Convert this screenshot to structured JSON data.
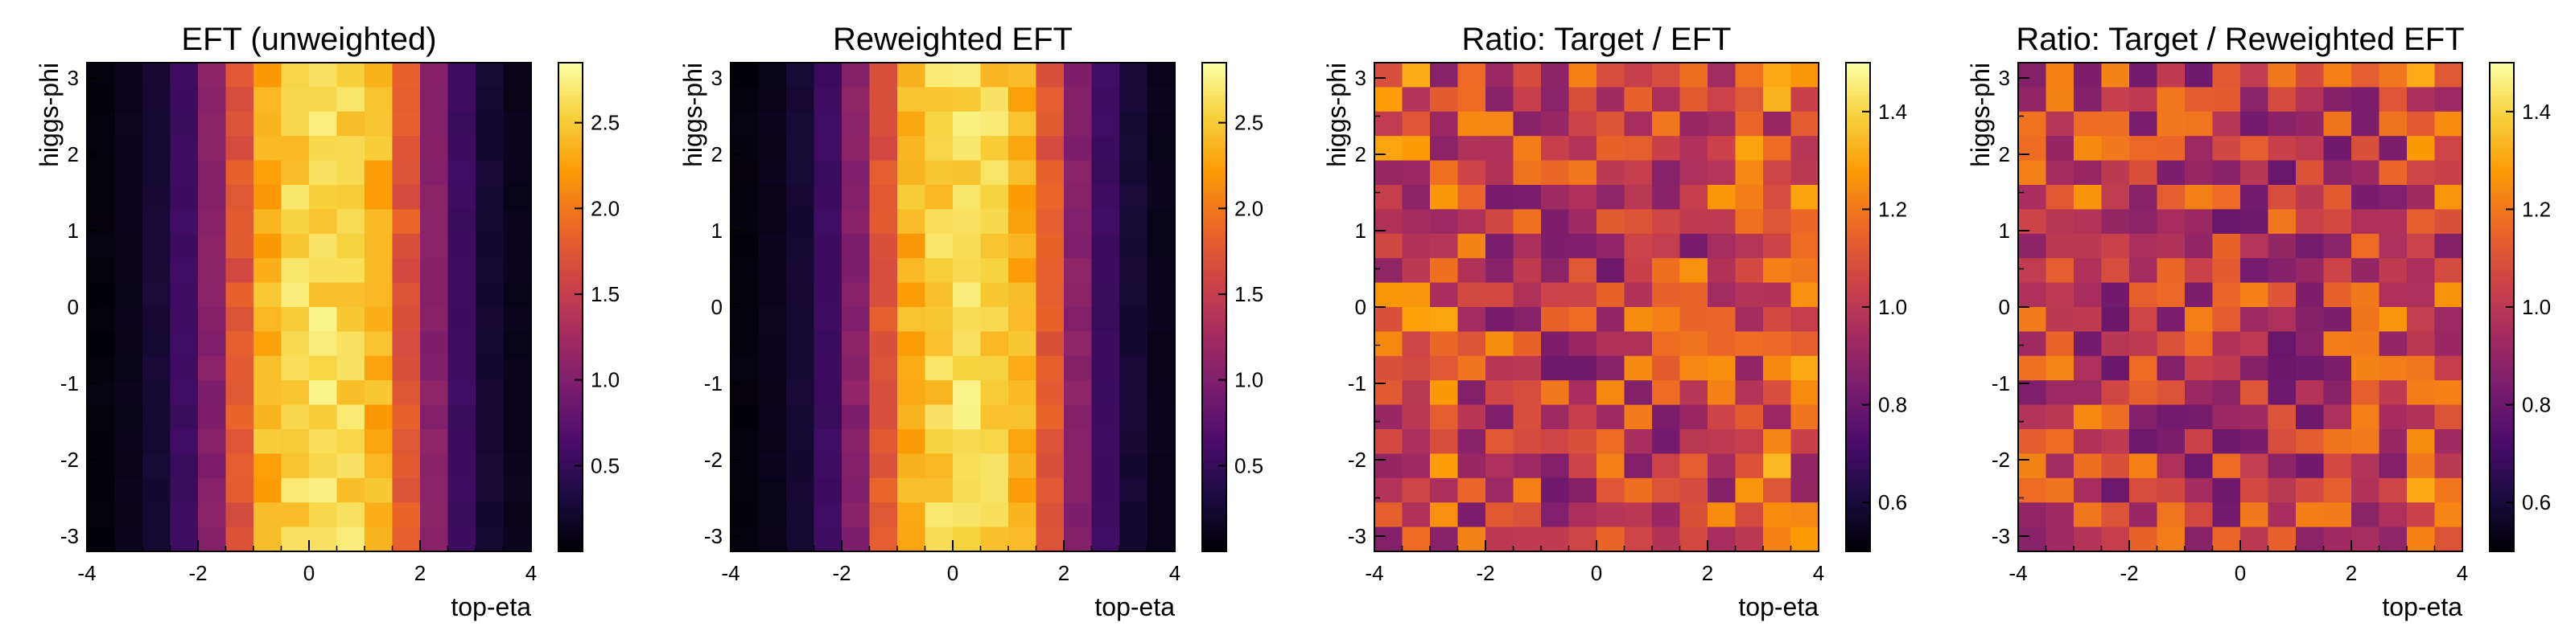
{
  "figure": {
    "colormap": "inferno",
    "colormap_stops": [
      "#000004",
      "#1b0c41",
      "#4a0c6b",
      "#781c6d",
      "#a52c60",
      "#cf4446",
      "#ed6925",
      "#fb9b06",
      "#f7d13d",
      "#fcffa4"
    ]
  },
  "chart_data": [
    {
      "type": "heatmap",
      "title": "EFT (unweighted)",
      "xlabel": "top-eta",
      "ylabel": "higgs-phi",
      "xlim": [
        -4,
        4
      ],
      "ylim": [
        -3.2,
        3.2
      ],
      "xticks": [
        "-4",
        "-2",
        "0",
        "2",
        "4"
      ],
      "yticks": [
        "-3",
        "-2",
        "-1",
        "0",
        "1",
        "2",
        "3"
      ],
      "nx": 16,
      "ny": 20,
      "colorbar": {
        "min": 0,
        "max": 2.85,
        "ticks": [
          "0.5",
          "1.0",
          "1.5",
          "2.0",
          "2.5"
        ],
        "tick_values": [
          0.5,
          1.0,
          1.5,
          2.0,
          2.5
        ]
      },
      "column_profile": [
        0.05,
        0.12,
        0.25,
        0.55,
        1.05,
        1.75,
        2.35,
        2.55,
        2.6,
        2.55,
        2.35,
        1.75,
        1.05,
        0.55,
        0.25,
        0.12
      ],
      "noise": 0.18,
      "seed": 11
    },
    {
      "type": "heatmap",
      "title": "Reweighted EFT",
      "xlabel": "top-eta",
      "ylabel": "higgs-phi",
      "xlim": [
        -4,
        4
      ],
      "ylim": [
        -3.2,
        3.2
      ],
      "xticks": [
        "-4",
        "-2",
        "0",
        "2",
        "4"
      ],
      "yticks": [
        "-3",
        "-2",
        "-1",
        "0",
        "1",
        "2",
        "3"
      ],
      "nx": 16,
      "ny": 20,
      "colorbar": {
        "min": 0,
        "max": 2.85,
        "ticks": [
          "0.5",
          "1.0",
          "1.5",
          "2.0",
          "2.5"
        ],
        "tick_values": [
          0.5,
          1.0,
          1.5,
          2.0,
          2.5
        ]
      },
      "column_profile": [
        0.05,
        0.12,
        0.25,
        0.55,
        1.05,
        1.75,
        2.35,
        2.55,
        2.6,
        2.55,
        2.35,
        1.75,
        1.05,
        0.55,
        0.25,
        0.12
      ],
      "noise": 0.18,
      "seed": 23
    },
    {
      "type": "heatmap",
      "title": "Ratio: Target / EFT",
      "xlabel": "top-eta",
      "ylabel": "higgs-phi",
      "xlim": [
        -4,
        4
      ],
      "ylim": [
        -3.2,
        3.2
      ],
      "xticks": [
        "-4",
        "-2",
        "0",
        "2",
        "4"
      ],
      "yticks": [
        "-3",
        "-2",
        "-1",
        "0",
        "1",
        "2",
        "3"
      ],
      "nx": 16,
      "ny": 20,
      "colorbar": {
        "min": 0.5,
        "max": 1.5,
        "ticks": [
          "0.6",
          "0.8",
          "1.0",
          "1.2",
          "1.4"
        ],
        "tick_values": [
          0.6,
          0.8,
          1.0,
          1.2,
          1.4
        ]
      },
      "column_profile": [
        1.08,
        1.1,
        1.08,
        1.06,
        1.05,
        1.04,
        1.03,
        1.02,
        1.02,
        1.03,
        1.04,
        1.05,
        1.06,
        1.08,
        1.12,
        1.1
      ],
      "noise": 0.22,
      "seed": 37
    },
    {
      "type": "heatmap",
      "title": "Ratio: Target / Reweighted EFT",
      "xlabel": "top-eta",
      "ylabel": "higgs-phi",
      "xlim": [
        -4,
        4
      ],
      "ylim": [
        -3.2,
        3.2
      ],
      "xticks": [
        "-4",
        "-2",
        "0",
        "2",
        "4"
      ],
      "yticks": [
        "-3",
        "-2",
        "-1",
        "0",
        "1",
        "2",
        "3"
      ],
      "nx": 16,
      "ny": 20,
      "colorbar": {
        "min": 0.5,
        "max": 1.5,
        "ticks": [
          "0.6",
          "0.8",
          "1.0",
          "1.2",
          "1.4"
        ],
        "tick_values": [
          0.6,
          0.8,
          1.0,
          1.2,
          1.4
        ]
      },
      "column_profile": [
        1.05,
        1.08,
        1.04,
        1.02,
        1.01,
        1.0,
        1.0,
        1.0,
        1.0,
        1.0,
        1.01,
        1.02,
        1.03,
        1.05,
        1.1,
        1.08
      ],
      "noise": 0.22,
      "seed": 53
    }
  ]
}
